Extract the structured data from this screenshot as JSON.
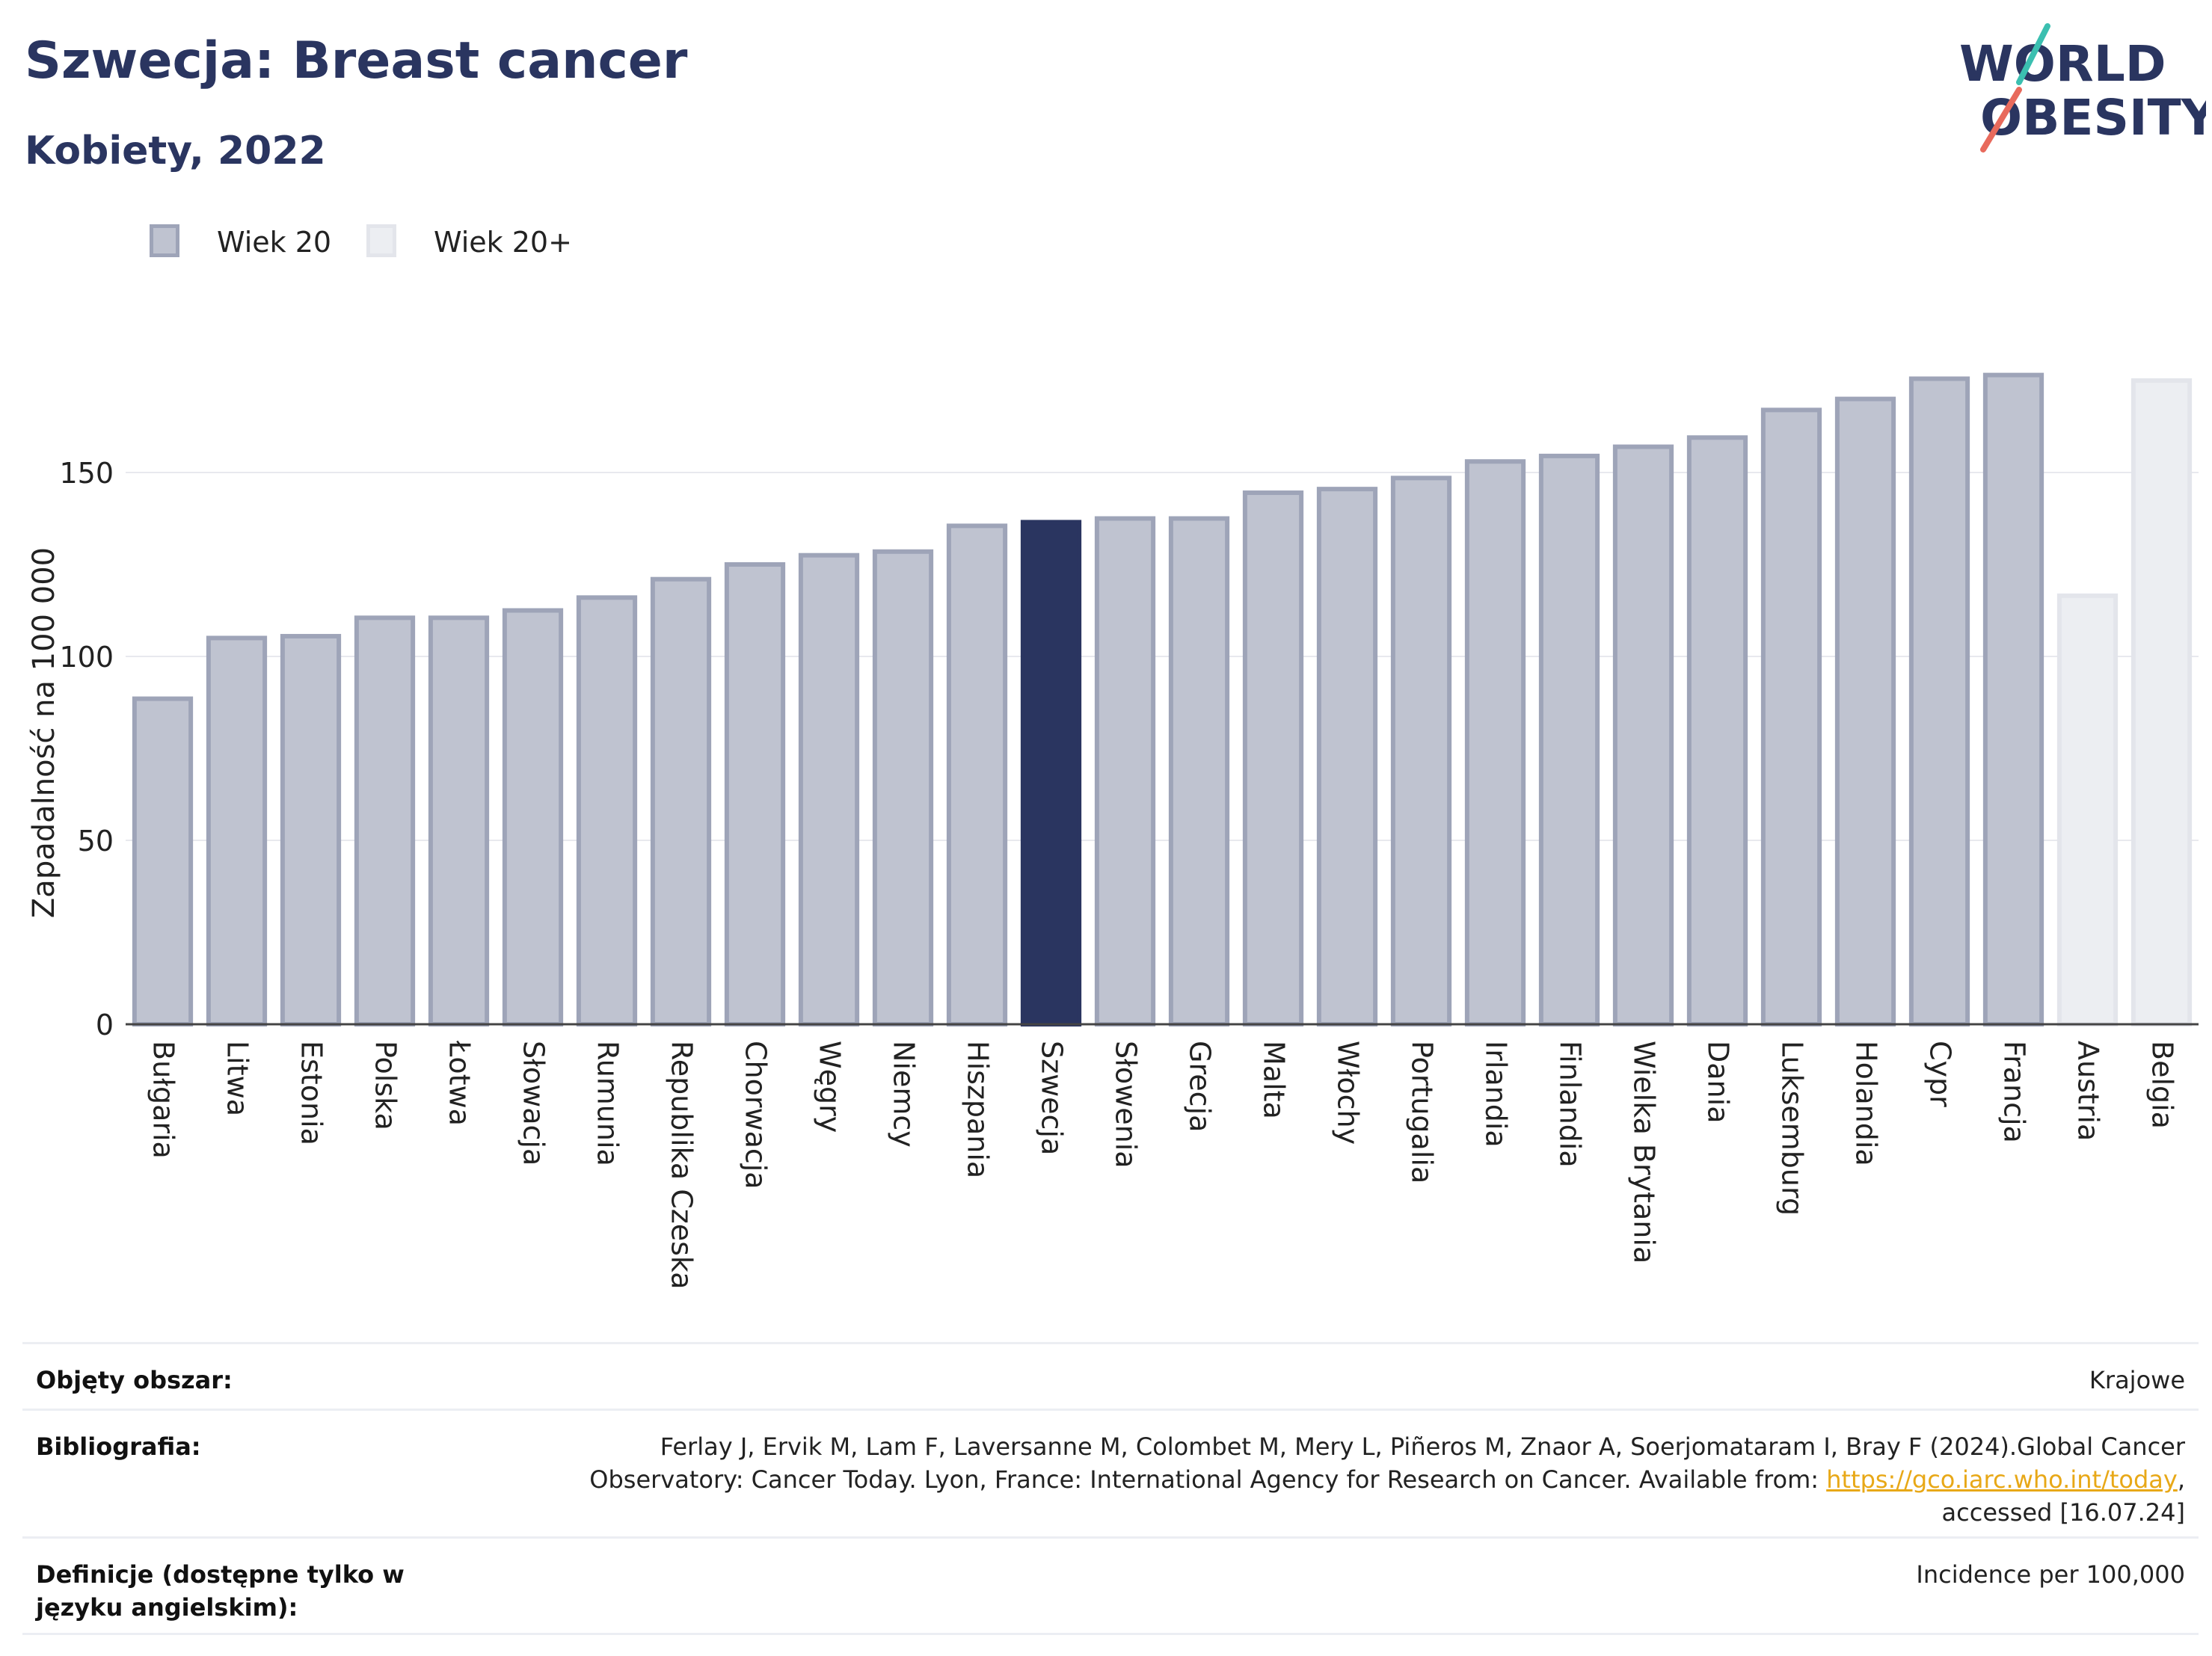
{
  "header": {
    "title": "Szwecja: Breast cancer",
    "subtitle": "Kobiety, 2022"
  },
  "logo": {
    "line1": "WORLD",
    "line2": "OBESITY"
  },
  "legend": {
    "items": [
      {
        "label": "Wiek 20",
        "color": "#bfc3d0",
        "border": "#9ea4b8"
      },
      {
        "label": "Wiek 20+",
        "color": "#eceef2",
        "border": "#e3e5eb"
      }
    ]
  },
  "chart_data": {
    "type": "bar",
    "ylabel": "Zapadalność na 100 000",
    "ylim": [
      0,
      190
    ],
    "yticks": [
      0,
      50,
      100,
      150
    ],
    "grid": true,
    "legend_position": "top-left",
    "highlight_color": "#2a3560",
    "categories": [
      "Bułgaria",
      "Litwa",
      "Estonia",
      "Polska",
      "Łotwa",
      "Słowacja",
      "Rumunia",
      "Republika Czeska",
      "Chorwacja",
      "Węgry",
      "Niemcy",
      "Hiszpania",
      "Szwecja",
      "Słowenia",
      "Grecja",
      "Malta",
      "Włochy",
      "Portugalia",
      "Irlandia",
      "Finlandia",
      "Wielka Brytania",
      "Dania",
      "Luksemburg",
      "Holandia",
      "Cypr",
      "Francja",
      "Austria",
      "Belgia"
    ],
    "values": [
      88.5,
      105,
      105.5,
      110.5,
      110.5,
      112.5,
      116,
      121,
      125,
      127.5,
      128.5,
      135.5,
      136.5,
      137.5,
      137.5,
      144.5,
      145.5,
      148.5,
      153,
      154.5,
      157,
      159.5,
      167,
      170,
      175.5,
      176.5,
      116.5,
      175
    ],
    "series_index": [
      0,
      0,
      0,
      0,
      0,
      0,
      0,
      0,
      0,
      0,
      0,
      0,
      0,
      0,
      0,
      0,
      0,
      0,
      0,
      0,
      0,
      0,
      0,
      0,
      0,
      0,
      1,
      1
    ],
    "highlight": "Szwecja"
  },
  "meta": {
    "area_label": "Objęty obszar:",
    "area_value": "Krajowe",
    "bib_label": "Bibliografia:",
    "bib_text_1": "Ferlay J, Ervik M, Lam F, Laversanne M, Colombet M, Mery L, Piñeros M, Znaor A, Soerjomataram I, Bray F (2024).Global Cancer Observatory: Cancer Today. Lyon, France: International Agency for Research on Cancer. Available from: ",
    "bib_link": "https://gco.iarc.who.int/today",
    "bib_text_2": ", accessed [16.07.24]",
    "def_label": "Definicje (dostępne tylko w języku angielskim):",
    "def_value": "Incidence per 100,000"
  }
}
